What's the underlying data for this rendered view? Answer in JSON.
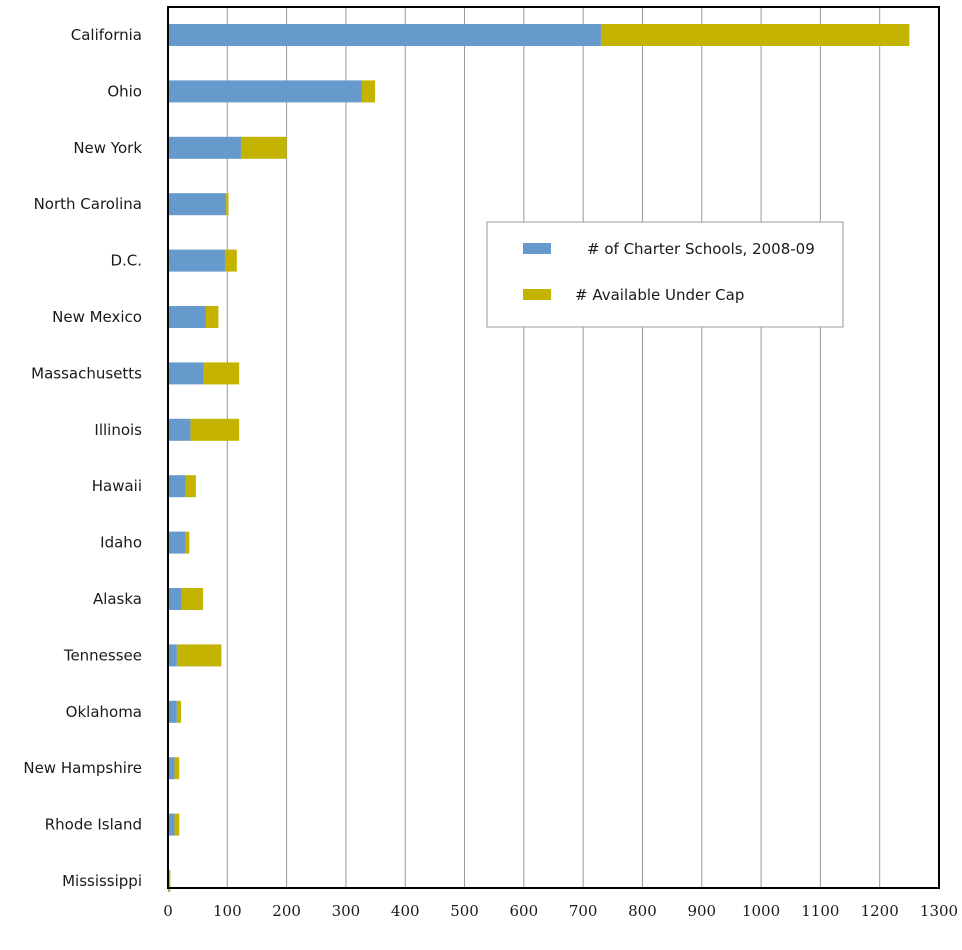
{
  "chart_data": {
    "type": "bar",
    "orientation": "horizontal",
    "stacked": true,
    "categories": [
      "California",
      "Ohio",
      "New York",
      "North Carolina",
      "D.C.",
      "New Mexico",
      "Massachusetts",
      "Illinois",
      "Hawaii",
      "Idaho",
      "Alaska",
      "Tennessee",
      "Oklahoma",
      "New Hampshire",
      "Rhode Island",
      "Mississippi"
    ],
    "series": [
      {
        "name": "# of Charter Schools, 2008-09",
        "color": "#6699cc",
        "values": [
          730,
          327,
          123,
          98,
          96,
          64,
          60,
          38,
          30,
          30,
          23,
          15,
          15,
          11,
          11,
          1
        ]
      },
      {
        "name": "# Available Under Cap",
        "color": "#c4b400",
        "values": [
          520,
          22,
          77,
          4,
          20,
          21,
          60,
          82,
          17,
          6,
          36,
          75,
          7,
          8,
          8,
          3
        ]
      }
    ],
    "x_ticks": [
      0,
      100,
      200,
      300,
      400,
      500,
      600,
      700,
      800,
      900,
      1000,
      1100,
      1200,
      1300
    ],
    "xlim": [
      0,
      1300
    ],
    "grid": "vertical",
    "legend_placement": "upper-right",
    "title": "",
    "xlabel": "",
    "ylabel": ""
  }
}
